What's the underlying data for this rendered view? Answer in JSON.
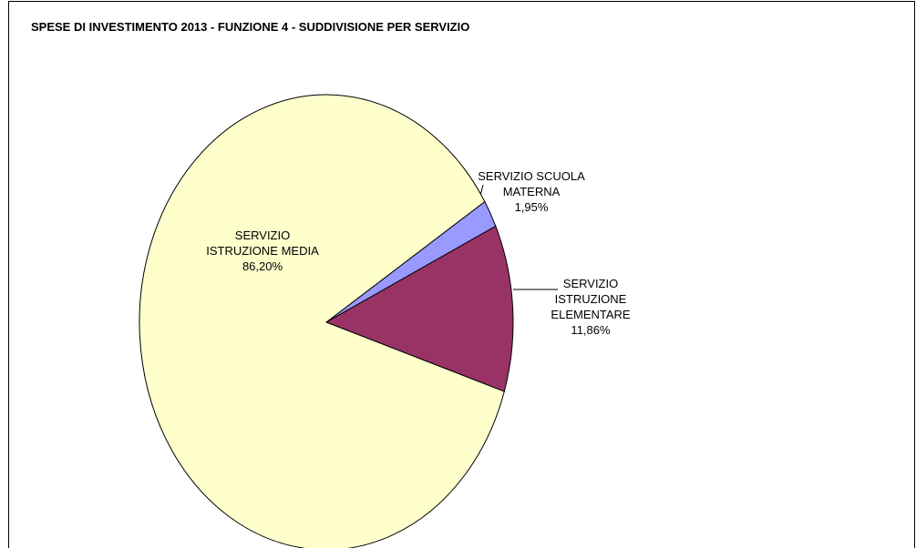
{
  "chart_data": {
    "type": "pie",
    "title": "SPESE DI INVESTIMENTO 2013 - FUNZIONE 4 - SUDDIVISIONE PER SERVIZIO",
    "categories": [
      "SERVIZIO SCUOLA\nMATERNA",
      "SERVIZIO\nISTRUZIONE\nELEMENTARE",
      "SERVIZIO\nISTRUZIONE MEDIA"
    ],
    "values": [
      1.95,
      11.86,
      86.2
    ],
    "value_labels": [
      "1,95%",
      "11,86%",
      "86,20%"
    ],
    "colors": [
      "#9999ff",
      "#993366",
      "#ffffcc"
    ]
  }
}
